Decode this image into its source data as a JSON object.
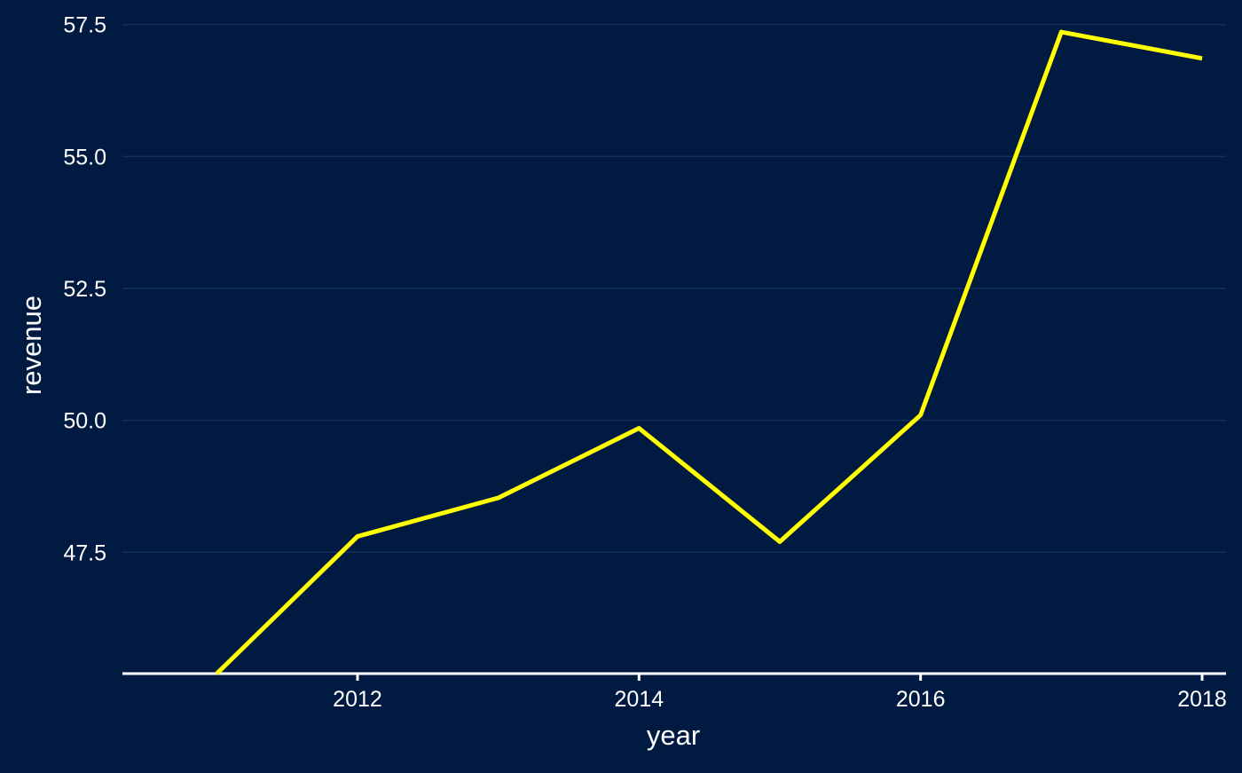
{
  "colors": {
    "background": "#001a42",
    "line": "#ffff00",
    "text": "#ffffff",
    "grid": "#14305a",
    "axis": "#ffffff"
  },
  "chart_data": {
    "type": "line",
    "xlabel": "year",
    "ylabel": "revenue",
    "x": [
      2011,
      2012,
      2013,
      2014,
      2015,
      2016,
      2017,
      2018
    ],
    "series": [
      {
        "values": [
          45.2,
          47.8,
          48.53,
          49.85,
          47.7,
          50.1,
          57.36,
          56.86
        ]
      }
    ],
    "xlim": [
      2010.33,
      2018.17
    ],
    "ylim": [
      45.2,
      57.63
    ],
    "x_ticks": [
      2012,
      2014,
      2016,
      2018
    ],
    "x_tick_labels": [
      "2012",
      "2014",
      "2016",
      "2018"
    ],
    "y_ticks": [
      47.5,
      50.0,
      52.5,
      55.0,
      57.5
    ],
    "y_tick_labels": [
      "47.5",
      "50.0",
      "52.5",
      "55.0",
      "57.5"
    ],
    "grid": "horizontal major",
    "legend": "none"
  }
}
